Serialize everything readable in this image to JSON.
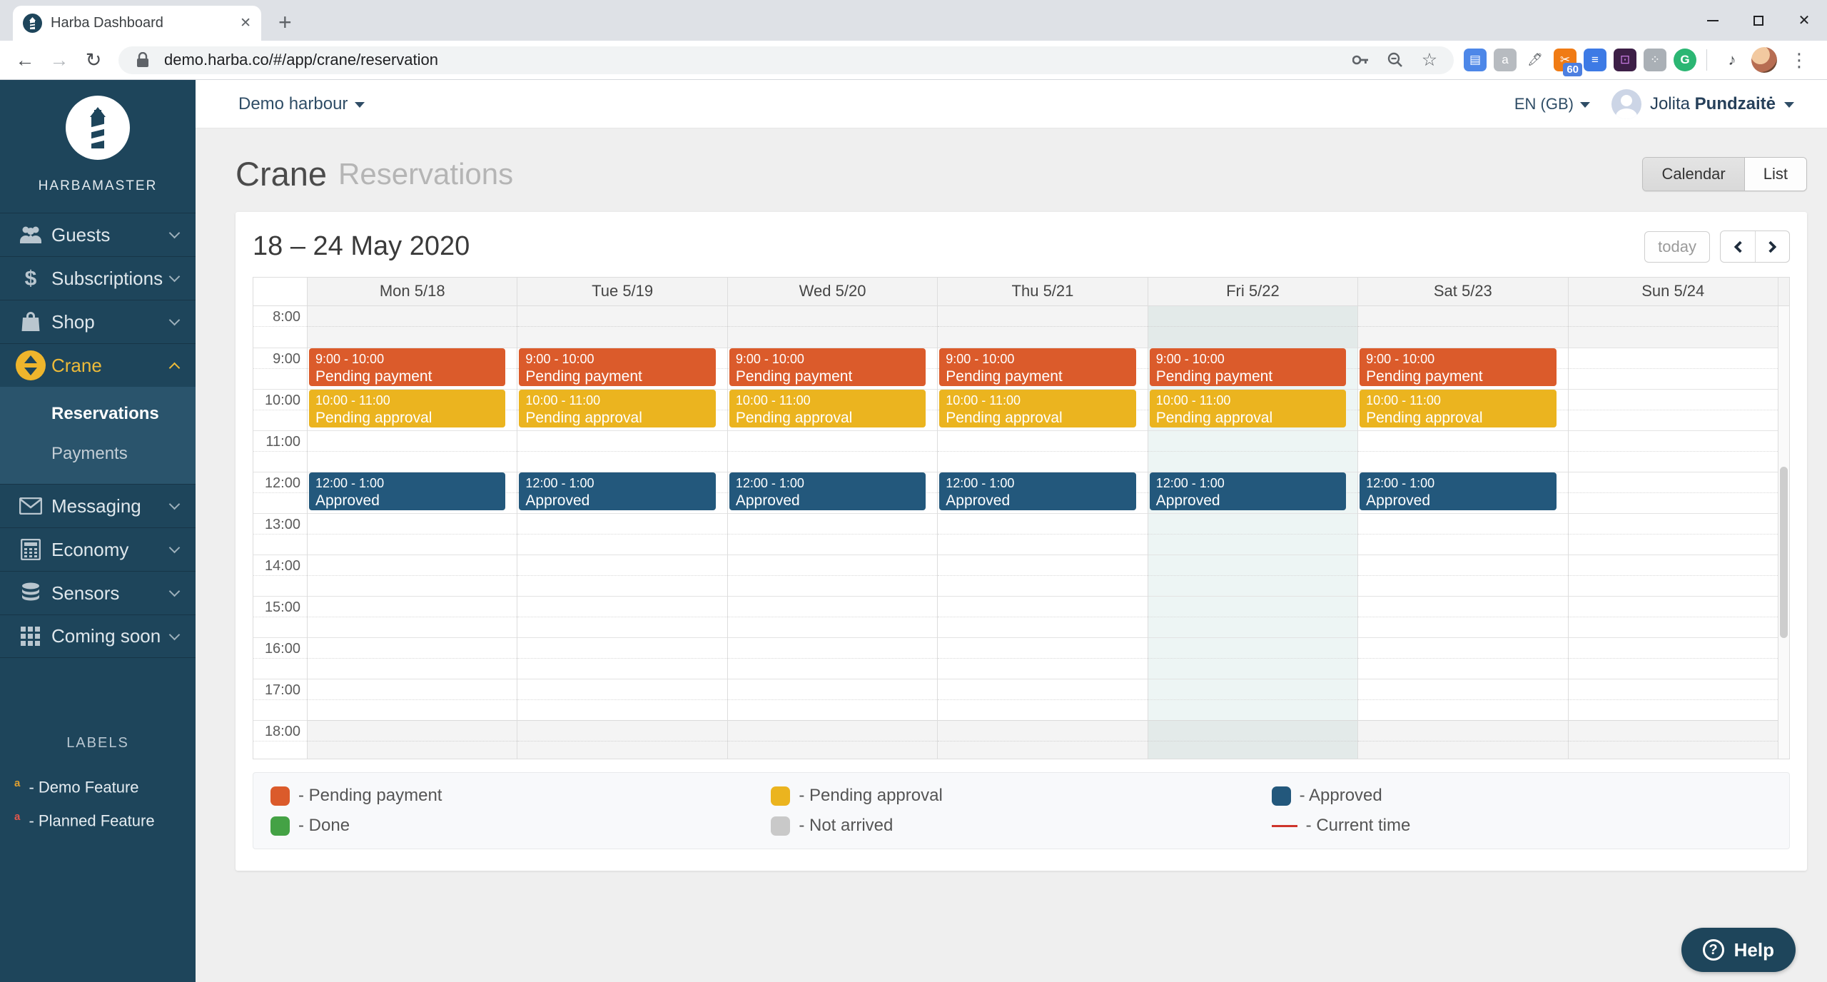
{
  "browser": {
    "tab_title": "Harba Dashboard",
    "url": "demo.harba.co/#/app/crane/reservation",
    "extensions": [
      {
        "name": "blue-extension-icon",
        "color": "#4d87e8",
        "badge": ""
      },
      {
        "name": "chat-extension-icon",
        "color": "#b7bbc0",
        "badge": ""
      },
      {
        "name": "eyedropper-extension-icon",
        "color": "#5a5e63",
        "badge": ""
      },
      {
        "name": "scissors-extension-icon",
        "color": "#f07b14",
        "badge": "60"
      },
      {
        "name": "notes-extension-icon",
        "color": "#3d7ae5",
        "badge": ""
      },
      {
        "name": "purple-extension-icon",
        "color": "#3d1f47",
        "badge": ""
      },
      {
        "name": "dots-extension-icon",
        "color": "#aab0b6",
        "badge": ""
      },
      {
        "name": "grammarly-extension-icon",
        "color": "#2bb673",
        "badge": ""
      }
    ],
    "glyphs": {
      "back": "←",
      "forward": "→",
      "reload": "↻",
      "star": "☆",
      "kebab": "⋮",
      "plus": "+",
      "tab_close": "✕",
      "window_close": "✕",
      "note": "♪",
      "question": "?"
    }
  },
  "sidebar": {
    "brand": "HARBAMASTER",
    "items": [
      {
        "label": "Guests",
        "icon": "guests-icon",
        "active": false
      },
      {
        "label": "Subscriptions",
        "icon": "dollar-icon",
        "active": false
      },
      {
        "label": "Shop",
        "icon": "bag-icon",
        "active": false
      },
      {
        "label": "Crane",
        "icon": "crane-icon",
        "active": true,
        "expanded": true
      },
      {
        "label": "Messaging",
        "icon": "envelope-icon",
        "active": false
      },
      {
        "label": "Economy",
        "icon": "calculator-icon",
        "active": false
      },
      {
        "label": "Sensors",
        "icon": "database-icon",
        "active": false
      },
      {
        "label": "Coming soon",
        "icon": "grid-icon",
        "active": false
      }
    ],
    "submenu": [
      {
        "label": "Reservations",
        "active": true
      },
      {
        "label": "Payments",
        "active": false
      }
    ],
    "labels_header": "LABELS",
    "labels": [
      {
        "sup": "a",
        "sup_color": "#e0a030",
        "text": "- Demo Feature"
      },
      {
        "sup": "a",
        "sup_color": "#e2574c",
        "text": "- Planned Feature"
      }
    ]
  },
  "header": {
    "harbour": "Demo harbour",
    "language": "EN (GB)",
    "user_first": "Jolita",
    "user_last": "Pundzaitė"
  },
  "page": {
    "title": "Crane",
    "subtitle": "Reservations",
    "view_calendar_label": "Calendar",
    "view_list_label": "List"
  },
  "calendar": {
    "range": "18 – 24 May 2020",
    "today_label": "today",
    "hours": [
      "8:00",
      "9:00",
      "10:00",
      "11:00",
      "12:00",
      "13:00",
      "14:00",
      "15:00",
      "16:00",
      "17:00",
      "18:00"
    ],
    "status_colors": {
      "pending_payment": "#db5b2b",
      "pending_approval": "#ebb41f",
      "approved": "#23587c",
      "done": "#44a245",
      "not_arrived": "#c9c9c9",
      "current_time": "#ce352c"
    },
    "days": [
      {
        "label": "Mon 5/18",
        "today": false,
        "events": [
          {
            "time": "9:00 - 10:00",
            "title": "Pending payment",
            "status": "pending_payment",
            "start": 9,
            "end": 10
          },
          {
            "time": "10:00 - 11:00",
            "title": "Pending approval",
            "status": "pending_approval",
            "start": 10,
            "end": 11
          },
          {
            "time": "12:00 - 1:00",
            "title": "Approved",
            "status": "approved",
            "start": 12,
            "end": 13
          }
        ]
      },
      {
        "label": "Tue 5/19",
        "today": false,
        "events": [
          {
            "time": "9:00 - 10:00",
            "title": "Pending payment",
            "status": "pending_payment",
            "start": 9,
            "end": 10
          },
          {
            "time": "10:00 - 11:00",
            "title": "Pending approval",
            "status": "pending_approval",
            "start": 10,
            "end": 11
          },
          {
            "time": "12:00 - 1:00",
            "title": "Approved",
            "status": "approved",
            "start": 12,
            "end": 13
          }
        ]
      },
      {
        "label": "Wed 5/20",
        "today": false,
        "events": [
          {
            "time": "9:00 - 10:00",
            "title": "Pending payment",
            "status": "pending_payment",
            "start": 9,
            "end": 10
          },
          {
            "time": "10:00 - 11:00",
            "title": "Pending approval",
            "status": "pending_approval",
            "start": 10,
            "end": 11
          },
          {
            "time": "12:00 - 1:00",
            "title": "Approved",
            "status": "approved",
            "start": 12,
            "end": 13
          }
        ]
      },
      {
        "label": "Thu 5/21",
        "today": false,
        "events": [
          {
            "time": "9:00 - 10:00",
            "title": "Pending payment",
            "status": "pending_payment",
            "start": 9,
            "end": 10
          },
          {
            "time": "10:00 - 11:00",
            "title": "Pending approval",
            "status": "pending_approval",
            "start": 10,
            "end": 11
          },
          {
            "time": "12:00 - 1:00",
            "title": "Approved",
            "status": "approved",
            "start": 12,
            "end": 13
          }
        ]
      },
      {
        "label": "Fri 5/22",
        "today": true,
        "events": [
          {
            "time": "9:00 - 10:00",
            "title": "Pending payment",
            "status": "pending_payment",
            "start": 9,
            "end": 10
          },
          {
            "time": "10:00 - 11:00",
            "title": "Pending approval",
            "status": "pending_approval",
            "start": 10,
            "end": 11
          },
          {
            "time": "12:00 - 1:00",
            "title": "Approved",
            "status": "approved",
            "start": 12,
            "end": 13
          }
        ]
      },
      {
        "label": "Sat 5/23",
        "today": false,
        "events": [
          {
            "time": "9:00 - 10:00",
            "title": "Pending payment",
            "status": "pending_payment",
            "start": 9,
            "end": 10
          },
          {
            "time": "10:00 - 11:00",
            "title": "Pending approval",
            "status": "pending_approval",
            "start": 10,
            "end": 11
          },
          {
            "time": "12:00 - 1:00",
            "title": "Approved",
            "status": "approved",
            "start": 12,
            "end": 13
          }
        ]
      },
      {
        "label": "Sun 5/24",
        "today": false,
        "events": []
      }
    ]
  },
  "legend": [
    {
      "status": "pending_payment",
      "text": "- Pending payment",
      "shape": "square"
    },
    {
      "status": "pending_approval",
      "text": "- Pending approval",
      "shape": "square"
    },
    {
      "status": "approved",
      "text": "- Approved",
      "shape": "square"
    },
    {
      "status": "done",
      "text": "- Done",
      "shape": "square"
    },
    {
      "status": "not_arrived",
      "text": "- Not arrived",
      "shape": "square"
    },
    {
      "status": "current_time",
      "text": "- Current time",
      "shape": "line"
    }
  ],
  "help": {
    "label": "Help"
  }
}
